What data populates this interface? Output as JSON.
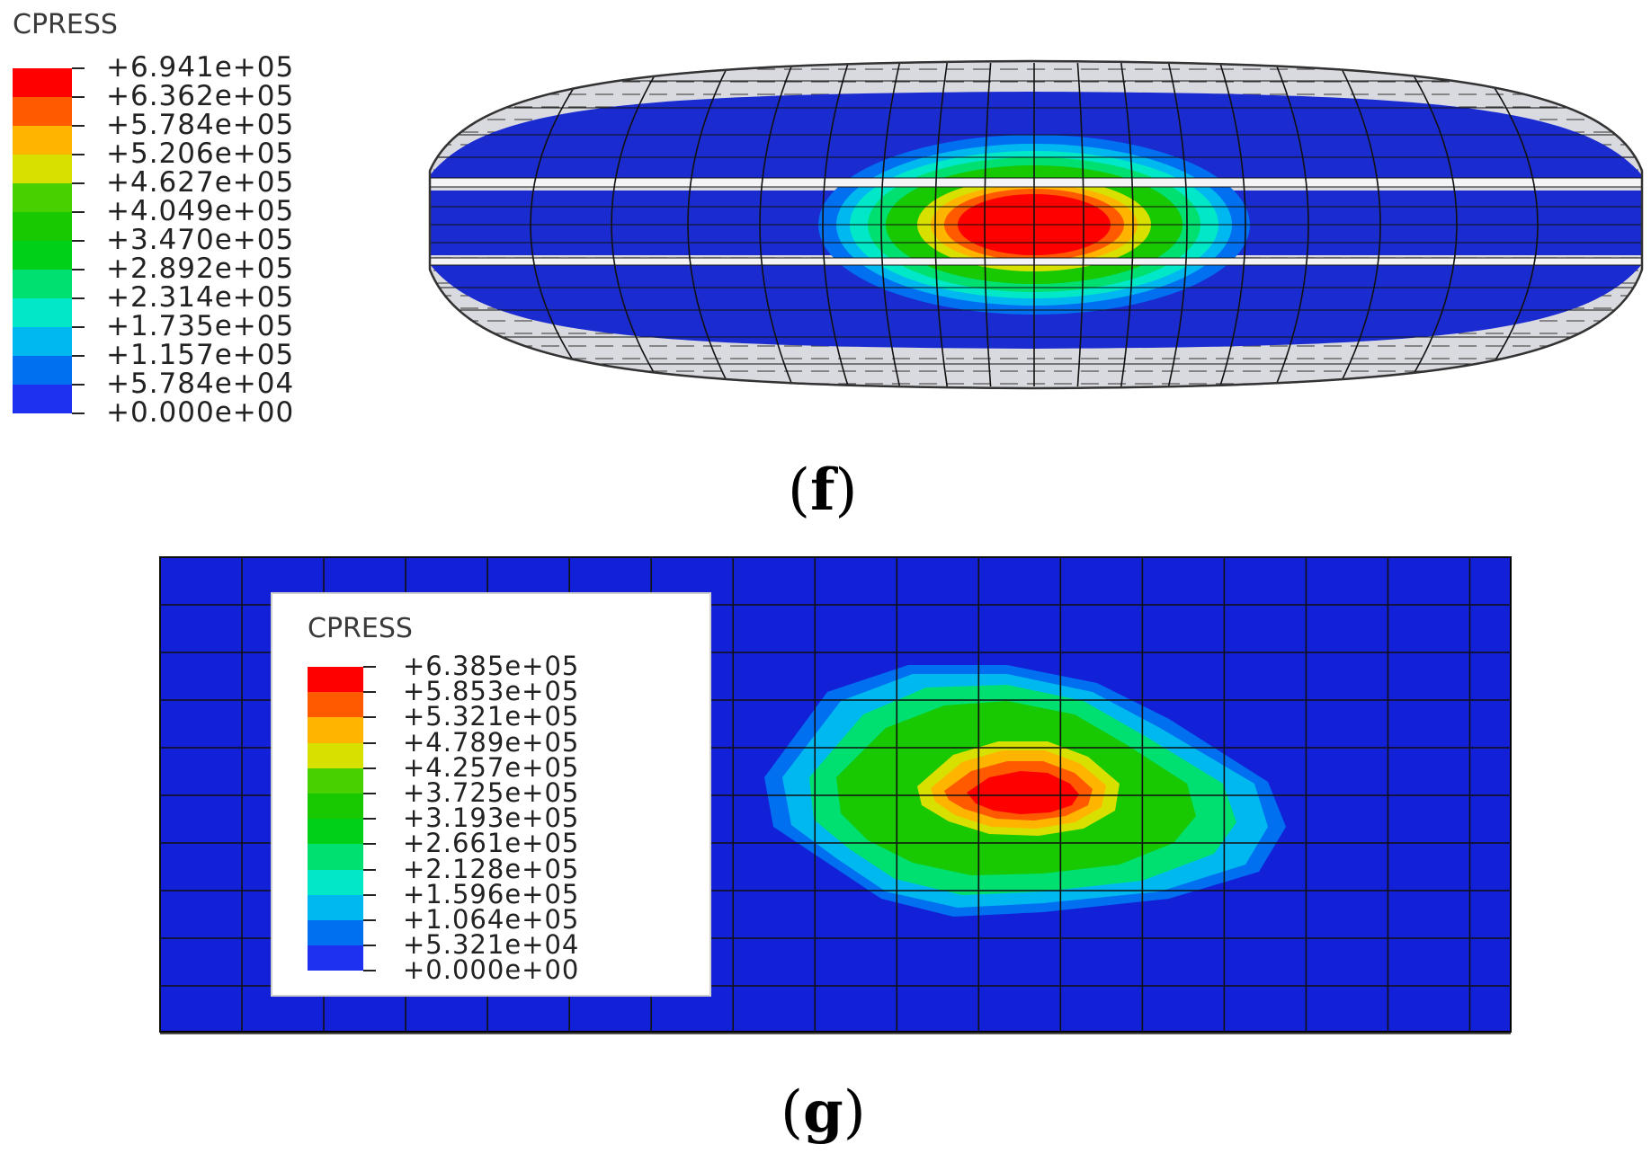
{
  "figure_f": {
    "caption_open": "(",
    "caption_letter": "f",
    "caption_close": ")",
    "legend": {
      "title": "CPRESS",
      "labels": [
        "+6.941e+05",
        "+6.362e+05",
        "+5.784e+05",
        "+5.206e+05",
        "+4.627e+05",
        "+4.049e+05",
        "+3.470e+05",
        "+2.892e+05",
        "+2.314e+05",
        "+1.735e+05",
        "+1.157e+05",
        "+5.784e+04",
        "+0.000e+00"
      ],
      "colors": [
        "#ff0000",
        "#ff5a00",
        "#ffb400",
        "#d8e000",
        "#48d000",
        "#18c800",
        "#00d018",
        "#00e070",
        "#00e8c8",
        "#00b8f0",
        "#0070f0",
        "#1e30f0"
      ]
    }
  },
  "figure_g": {
    "caption_open": "(",
    "caption_letter": "g",
    "caption_close": ")",
    "legend": {
      "title": "CPRESS",
      "labels": [
        "+6.385e+05",
        "+5.853e+05",
        "+5.321e+05",
        "+4.789e+05",
        "+4.257e+05",
        "+3.725e+05",
        "+3.193e+05",
        "+2.661e+05",
        "+2.128e+05",
        "+1.596e+05",
        "+1.064e+05",
        "+5.321e+04",
        "+0.000e+00"
      ],
      "colors": [
        "#ff0000",
        "#ff5a00",
        "#ffb400",
        "#d8e000",
        "#48d000",
        "#18c800",
        "#00d018",
        "#00e070",
        "#00e8c8",
        "#00b8f0",
        "#0070f0",
        "#1e30f0"
      ]
    }
  },
  "palette": {
    "background_blue": "#1220d8",
    "mesh_line": "#101010",
    "grey_shell": "#cfd0d4"
  }
}
